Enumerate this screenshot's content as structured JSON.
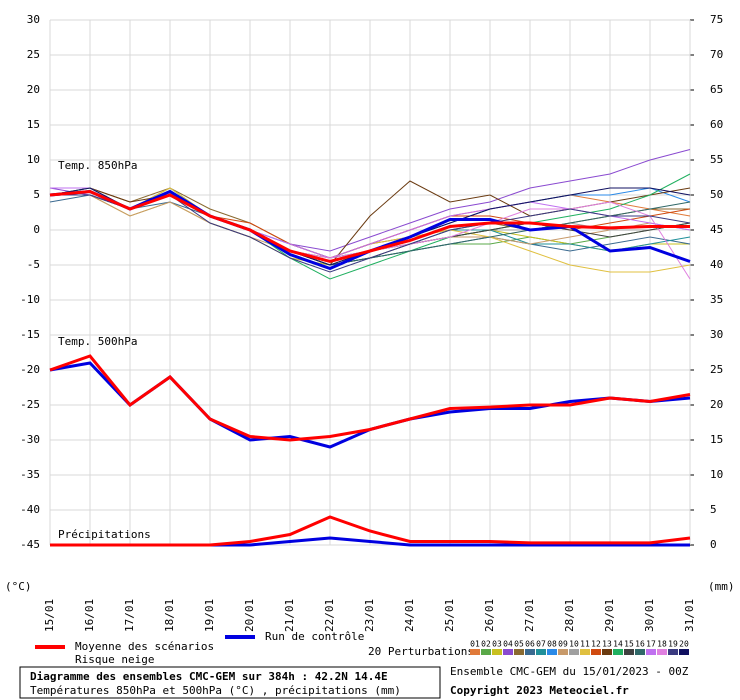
{
  "chart_data": {
    "type": "line",
    "title": "Diagramme des ensembles CMC-GEM sur 384h : 42.2N 14.4E",
    "subtitle": "Températures 850hPa et 500hPa (°C) , précipitations (mm)",
    "run_label": "Ensemble CMC-GEM du 15/01/2023 - 00Z",
    "copyright": "Copyright 2023 Meteociel.fr",
    "ylabel": "(°C)",
    "y2label": "(mm)",
    "snow_label": "Risque neige",
    "perturbations_label": "20 Perturbations",
    "grid": true,
    "x": [
      "15/01",
      "16/01",
      "17/01",
      "18/01",
      "19/01",
      "20/01",
      "21/01",
      "22/01",
      "23/01",
      "24/01",
      "25/01",
      "26/01",
      "27/01",
      "28/01",
      "29/01",
      "30/01",
      "31/01"
    ],
    "ylim": [
      -45,
      30
    ],
    "yticks": [
      30,
      25,
      20,
      15,
      10,
      5,
      0,
      -5,
      -10,
      -15,
      -20,
      -25,
      -30,
      -35,
      -40,
      -45
    ],
    "y2lim": [
      0,
      75
    ],
    "y2ticks": [
      75,
      70,
      65,
      60,
      55,
      50,
      45,
      40,
      35,
      30,
      25,
      20,
      15,
      10,
      5,
      0
    ],
    "panels": [
      {
        "label": "Temp. 850hPa",
        "series": [
          {
            "name": "01",
            "color": "#e07a3a",
            "values": [
              5,
              5,
              3,
              5,
              2,
              0,
              -3,
              -4,
              -2,
              0,
              2,
              3,
              4,
              5,
              4,
              3,
              2
            ]
          },
          {
            "name": "02",
            "color": "#5aa848",
            "values": [
              6,
              6,
              3,
              6,
              2,
              0,
              -3,
              -5,
              -4,
              -3,
              -2,
              -2,
              -1,
              -2,
              -1,
              0,
              1
            ]
          },
          {
            "name": "03",
            "color": "#c8c020",
            "values": [
              5,
              5,
              2,
              4,
              1,
              -1,
              -4,
              -5,
              -3,
              -2,
              -1,
              0,
              -1,
              -2,
              -3,
              -2,
              -2
            ]
          },
          {
            "name": "04",
            "color": "#8a4ad0",
            "values": [
              6,
              5,
              3,
              5,
              2,
              0,
              -2,
              -3,
              -1,
              1,
              3,
              4,
              6,
              7,
              8,
              10,
              11.5
            ]
          },
          {
            "name": "05",
            "color": "#8a6a30",
            "values": [
              5,
              6,
              4,
              6,
              3,
              1,
              -2,
              -4,
              -2,
              -1,
              0,
              1,
              0,
              1,
              2,
              3,
              3
            ]
          },
          {
            "name": "06",
            "color": "#3a6a90",
            "values": [
              4,
              5,
              3,
              4,
              2,
              0,
              -3,
              -5,
              -4,
              -3,
              -2,
              -1,
              -2,
              -3,
              -2,
              -1,
              -2
            ]
          },
          {
            "name": "07",
            "color": "#20909a",
            "values": [
              5,
              5,
              3,
              5,
              2,
              0,
              -3,
              -4,
              -3,
              -2,
              0,
              0,
              -2,
              -2,
              -3,
              -2,
              -1
            ]
          },
          {
            "name": "08",
            "color": "#2a8ae8",
            "values": [
              6,
              6,
              3,
              5,
              2,
              0,
              -2,
              -4,
              -3,
              -1,
              1,
              3,
              4,
              5,
              5,
              6,
              4
            ]
          },
          {
            "name": "09",
            "color": "#c89a6a",
            "values": [
              5,
              5,
              2,
              4,
              1,
              -1,
              -3,
              -5,
              -3,
              -2,
              -1,
              -1,
              -2,
              -1,
              0,
              1,
              0
            ]
          },
          {
            "name": "10",
            "color": "#a0a0a0",
            "values": [
              5,
              6,
              3,
              5,
              2,
              0,
              -3,
              -4,
              -3,
              -2,
              -1,
              0,
              0,
              1,
              0,
              0,
              1
            ]
          },
          {
            "name": "11",
            "color": "#e0c040",
            "values": [
              5,
              5,
              3,
              6,
              2,
              0,
              -3,
              -4,
              -2,
              -1,
              0,
              -1,
              -3,
              -5,
              -6,
              -6,
              -5
            ]
          },
          {
            "name": "12",
            "color": "#d04a10",
            "values": [
              5,
              5,
              3,
              5,
              2,
              1,
              -2,
              -4,
              -2,
              0,
              2,
              2,
              1,
              0,
              1,
              2,
              3
            ]
          },
          {
            "name": "13",
            "color": "#6a3a10",
            "values": [
              6,
              6,
              4,
              5,
              2,
              0,
              -3,
              -5,
              2,
              7,
              4,
              5,
              2,
              3,
              4,
              5,
              6
            ]
          },
          {
            "name": "14",
            "color": "#20b060",
            "values": [
              5,
              6,
              3,
              5,
              2,
              0,
              -4,
              -7,
              -5,
              -3,
              -1,
              0,
              1,
              2,
              3,
              5,
              8
            ]
          },
          {
            "name": "15",
            "color": "#404040",
            "values": [
              5,
              5,
              3,
              5,
              2,
              0,
              -3,
              -5,
              -4,
              -2,
              -1,
              0,
              1,
              0,
              -1,
              0,
              1
            ]
          },
          {
            "name": "16",
            "color": "#306868",
            "values": [
              5,
              5,
              3,
              5,
              2,
              0,
              -3,
              -5,
              -4,
              -3,
              -2,
              -1,
              0,
              1,
              2,
              3,
              4
            ]
          },
          {
            "name": "17",
            "color": "#c070f0",
            "values": [
              6,
              6,
              3,
              5,
              2,
              0,
              -2,
              -4,
              -2,
              0,
              2,
              3,
              4,
              3,
              2,
              1,
              0
            ]
          },
          {
            "name": "18",
            "color": "#e080e0",
            "values": [
              5,
              5,
              3,
              5,
              2,
              0,
              -3,
              -4,
              -3,
              -2,
              -1,
              1,
              3,
              3,
              4,
              2,
              -7
            ]
          },
          {
            "name": "19",
            "color": "#3a3a80",
            "values": [
              5,
              5,
              3,
              5,
              1,
              -1,
              -4,
              -6,
              -4,
              -2,
              0,
              1,
              2,
              3,
              2,
              2,
              1
            ]
          },
          {
            "name": "20",
            "color": "#101060",
            "values": [
              5,
              6,
              3,
              5,
              2,
              0,
              -3,
              -5,
              -3,
              -1,
              1,
              3,
              4,
              5,
              6,
              6,
              5
            ]
          },
          {
            "name": "Run de contrôle",
            "color": "#0000e0",
            "values": [
              5,
              5.5,
              3,
              5.5,
              2,
              0,
              -3.5,
              -5.5,
              -3,
              -1,
              1.5,
              1.5,
              0,
              0.5,
              -3,
              -2.5,
              -4.5
            ]
          },
          {
            "name": "Moyenne des scénarios",
            "color": "#ff0000",
            "values": [
              5,
              5.5,
              3,
              5,
              2,
              0,
              -3,
              -4.5,
              -3,
              -1.5,
              0.5,
              1,
              1,
              0.5,
              0.3,
              0.5,
              0.5
            ]
          }
        ]
      },
      {
        "label": "Temp. 500hPa",
        "series": [
          {
            "name": "Run de contrôle",
            "color": "#0000e0",
            "values": [
              -20,
              -19,
              -25,
              -21,
              -27,
              -30,
              -29.5,
              -31,
              -28.5,
              -27,
              -26,
              -25.5,
              -25.5,
              -24.5,
              -24,
              -24.5,
              -24
            ]
          },
          {
            "name": "Moyenne des scénarios",
            "color": "#ff0000",
            "values": [
              -20,
              -18,
              -25,
              -21,
              -27,
              -29.5,
              -30,
              -29.5,
              -28.5,
              -27,
              -25.5,
              -25.3,
              -25,
              -25,
              -24,
              -24.5,
              -23.5
            ]
          }
        ]
      },
      {
        "label": "Précipitations",
        "series": [
          {
            "name": "Run de contrôle",
            "color": "#0000e0",
            "axis": "y2",
            "values": [
              0,
              0,
              0,
              0,
              0,
              0,
              0.5,
              1,
              0.5,
              0,
              0,
              0,
              0,
              0,
              0,
              0,
              0
            ]
          },
          {
            "name": "Moyenne des scénarios",
            "color": "#ff0000",
            "axis": "y2",
            "values": [
              0,
              0,
              0,
              0,
              0,
              0.5,
              1.5,
              4,
              2,
              0.5,
              0.5,
              0.5,
              0.3,
              0.3,
              0.3,
              0.3,
              1
            ]
          }
        ]
      }
    ]
  }
}
